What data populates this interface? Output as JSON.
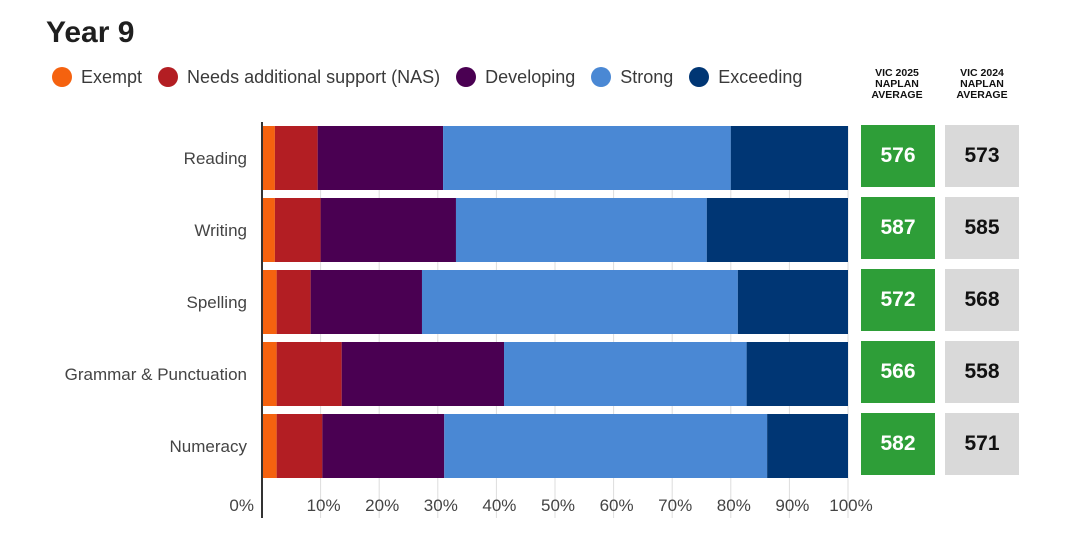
{
  "title": "Year 9",
  "legend": [
    {
      "label": "Exempt",
      "color": "#f5620f"
    },
    {
      "label": "Needs additional support (NAS)",
      "color": "#b31e23"
    },
    {
      "label": "Developing",
      "color": "#4a0052"
    },
    {
      "label": "Strong",
      "color": "#4a88d4"
    },
    {
      "label": "Exceeding",
      "color": "#003674"
    }
  ],
  "columns": {
    "vic_2025": "VIC 2025 NAPLAN AVERAGE",
    "vic_2024": "VIC 2024 NAPLAN AVERAGE"
  },
  "chart_data": {
    "type": "bar",
    "orientation": "horizontal",
    "stacked": true,
    "categories": [
      "Reading",
      "Writing",
      "Spelling",
      "Grammar & Punctuation",
      "Numeracy"
    ],
    "series": [
      {
        "name": "Exempt",
        "color": "#f5620f",
        "values": [
          2.2,
          2.2,
          2.5,
          2.5,
          2.5
        ]
      },
      {
        "name": "Needs additional support (NAS)",
        "color": "#b31e23",
        "values": [
          7.3,
          7.8,
          5.8,
          11.1,
          7.8
        ]
      },
      {
        "name": "Developing",
        "color": "#4a0052",
        "values": [
          21.4,
          23.1,
          19.0,
          27.7,
          20.8
        ]
      },
      {
        "name": "Strong",
        "color": "#4a88d4",
        "values": [
          49.1,
          42.8,
          53.9,
          41.4,
          55.1
        ]
      },
      {
        "name": "Exceeding",
        "color": "#003674",
        "values": [
          20.0,
          24.1,
          18.8,
          17.3,
          13.8
        ]
      }
    ],
    "x_ticks": [
      "0%",
      "10%",
      "20%",
      "30%",
      "40%",
      "50%",
      "60%",
      "70%",
      "80%",
      "90%",
      "100%"
    ],
    "xlim": [
      0,
      100
    ],
    "grid": true,
    "legend_position": "top",
    "vic_2025_average": [
      576,
      587,
      572,
      566,
      582
    ],
    "vic_2024_average": [
      573,
      585,
      568,
      558,
      571
    ]
  }
}
